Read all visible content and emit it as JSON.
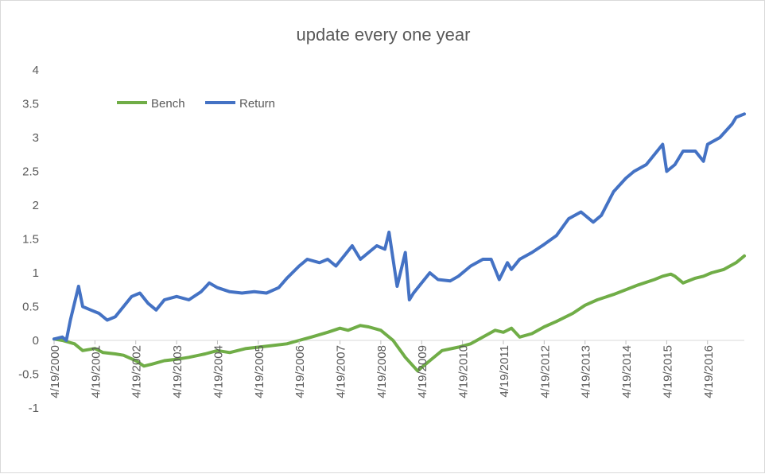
{
  "chart_data": {
    "type": "line",
    "title": "update every one year",
    "xlabel": "",
    "ylabel": "",
    "ylim": [
      -1,
      4
    ],
    "yticks": [
      "-1",
      "-0.5",
      "0",
      "0.5",
      "1",
      "1.5",
      "2",
      "2.5",
      "3",
      "3.5",
      "4"
    ],
    "x_tick_labels": [
      "4/19/2000",
      "4/19/2001",
      "4/19/2002",
      "4/19/2003",
      "4/19/2004",
      "4/19/2005",
      "4/19/2006",
      "4/19/2007",
      "4/19/2008",
      "4/19/2009",
      "4/19/2010",
      "4/19/2011",
      "4/19/2012",
      "4/19/2013",
      "4/19/2014",
      "4/19/2015",
      "4/19/2016"
    ],
    "xlim": [
      2000.3,
      2017.2
    ],
    "grid": {
      "horizontal": false,
      "vertical": false
    },
    "legend_position": "top-left",
    "series": [
      {
        "name": "Bench",
        "color": "#70ad47",
        "x": [
          2000.3,
          2000.5,
          2000.8,
          2001.0,
          2001.3,
          2001.5,
          2001.8,
          2002.0,
          2002.3,
          2002.5,
          2002.7,
          2003.0,
          2003.3,
          2003.6,
          2004.0,
          2004.3,
          2004.6,
          2005.0,
          2005.3,
          2005.6,
          2006.0,
          2006.3,
          2006.6,
          2007.0,
          2007.3,
          2007.5,
          2007.8,
          2008.0,
          2008.3,
          2008.6,
          2008.9,
          2009.2,
          2009.5,
          2009.8,
          2010.2,
          2010.5,
          2010.8,
          2011.1,
          2011.3,
          2011.5,
          2011.7,
          2012.0,
          2012.3,
          2012.6,
          2013.0,
          2013.3,
          2013.6,
          2014.0,
          2014.3,
          2014.6,
          2015.0,
          2015.2,
          2015.4,
          2015.5,
          2015.7,
          2016.0,
          2016.2,
          2016.4,
          2016.7,
          2017.0,
          2017.2
        ],
        "values": [
          0.02,
          0.0,
          -0.05,
          -0.15,
          -0.12,
          -0.18,
          -0.2,
          -0.22,
          -0.3,
          -0.38,
          -0.35,
          -0.3,
          -0.28,
          -0.25,
          -0.2,
          -0.15,
          -0.18,
          -0.12,
          -0.1,
          -0.08,
          -0.05,
          0.0,
          0.05,
          0.12,
          0.18,
          0.15,
          0.22,
          0.2,
          0.15,
          0.0,
          -0.25,
          -0.45,
          -0.3,
          -0.15,
          -0.1,
          -0.05,
          0.05,
          0.15,
          0.12,
          0.18,
          0.05,
          0.1,
          0.2,
          0.28,
          0.4,
          0.52,
          0.6,
          0.68,
          0.75,
          0.82,
          0.9,
          0.95,
          0.98,
          0.95,
          0.85,
          0.92,
          0.95,
          1.0,
          1.05,
          1.15,
          1.25
        ]
      },
      {
        "name": "Return",
        "color": "#4472c4",
        "x": [
          2000.3,
          2000.5,
          2000.6,
          2000.7,
          2000.9,
          2001.0,
          2001.2,
          2001.4,
          2001.6,
          2001.8,
          2002.0,
          2002.2,
          2002.4,
          2002.6,
          2002.8,
          2003.0,
          2003.3,
          2003.6,
          2003.9,
          2004.1,
          2004.3,
          2004.6,
          2004.9,
          2005.2,
          2005.5,
          2005.8,
          2006.0,
          2006.3,
          2006.5,
          2006.8,
          2007.0,
          2007.2,
          2007.4,
          2007.6,
          2007.8,
          2008.0,
          2008.2,
          2008.4,
          2008.5,
          2008.7,
          2008.9,
          2009.0,
          2009.1,
          2009.3,
          2009.5,
          2009.7,
          2010.0,
          2010.2,
          2010.5,
          2010.8,
          2011.0,
          2011.2,
          2011.4,
          2011.5,
          2011.7,
          2012.0,
          2012.3,
          2012.6,
          2012.9,
          2013.2,
          2013.5,
          2013.7,
          2014.0,
          2014.3,
          2014.5,
          2014.8,
          2015.0,
          2015.2,
          2015.3,
          2015.5,
          2015.7,
          2016.0,
          2016.2,
          2016.3,
          2016.6,
          2016.9,
          2017.0,
          2017.2
        ],
        "values": [
          0.02,
          0.05,
          0.0,
          0.3,
          0.8,
          0.5,
          0.45,
          0.4,
          0.3,
          0.35,
          0.5,
          0.65,
          0.7,
          0.55,
          0.45,
          0.6,
          0.65,
          0.6,
          0.72,
          0.85,
          0.78,
          0.72,
          0.7,
          0.72,
          0.7,
          0.78,
          0.92,
          1.1,
          1.2,
          1.15,
          1.2,
          1.1,
          1.25,
          1.4,
          1.2,
          1.3,
          1.4,
          1.35,
          1.6,
          0.8,
          1.3,
          0.6,
          0.7,
          0.85,
          1.0,
          0.9,
          0.88,
          0.95,
          1.1,
          1.2,
          1.2,
          0.9,
          1.15,
          1.05,
          1.2,
          1.3,
          1.42,
          1.55,
          1.8,
          1.9,
          1.75,
          1.85,
          2.2,
          2.4,
          2.5,
          2.6,
          2.75,
          2.9,
          2.5,
          2.6,
          2.8,
          2.8,
          2.65,
          2.9,
          3.0,
          3.2,
          3.3,
          3.35
        ]
      }
    ]
  }
}
